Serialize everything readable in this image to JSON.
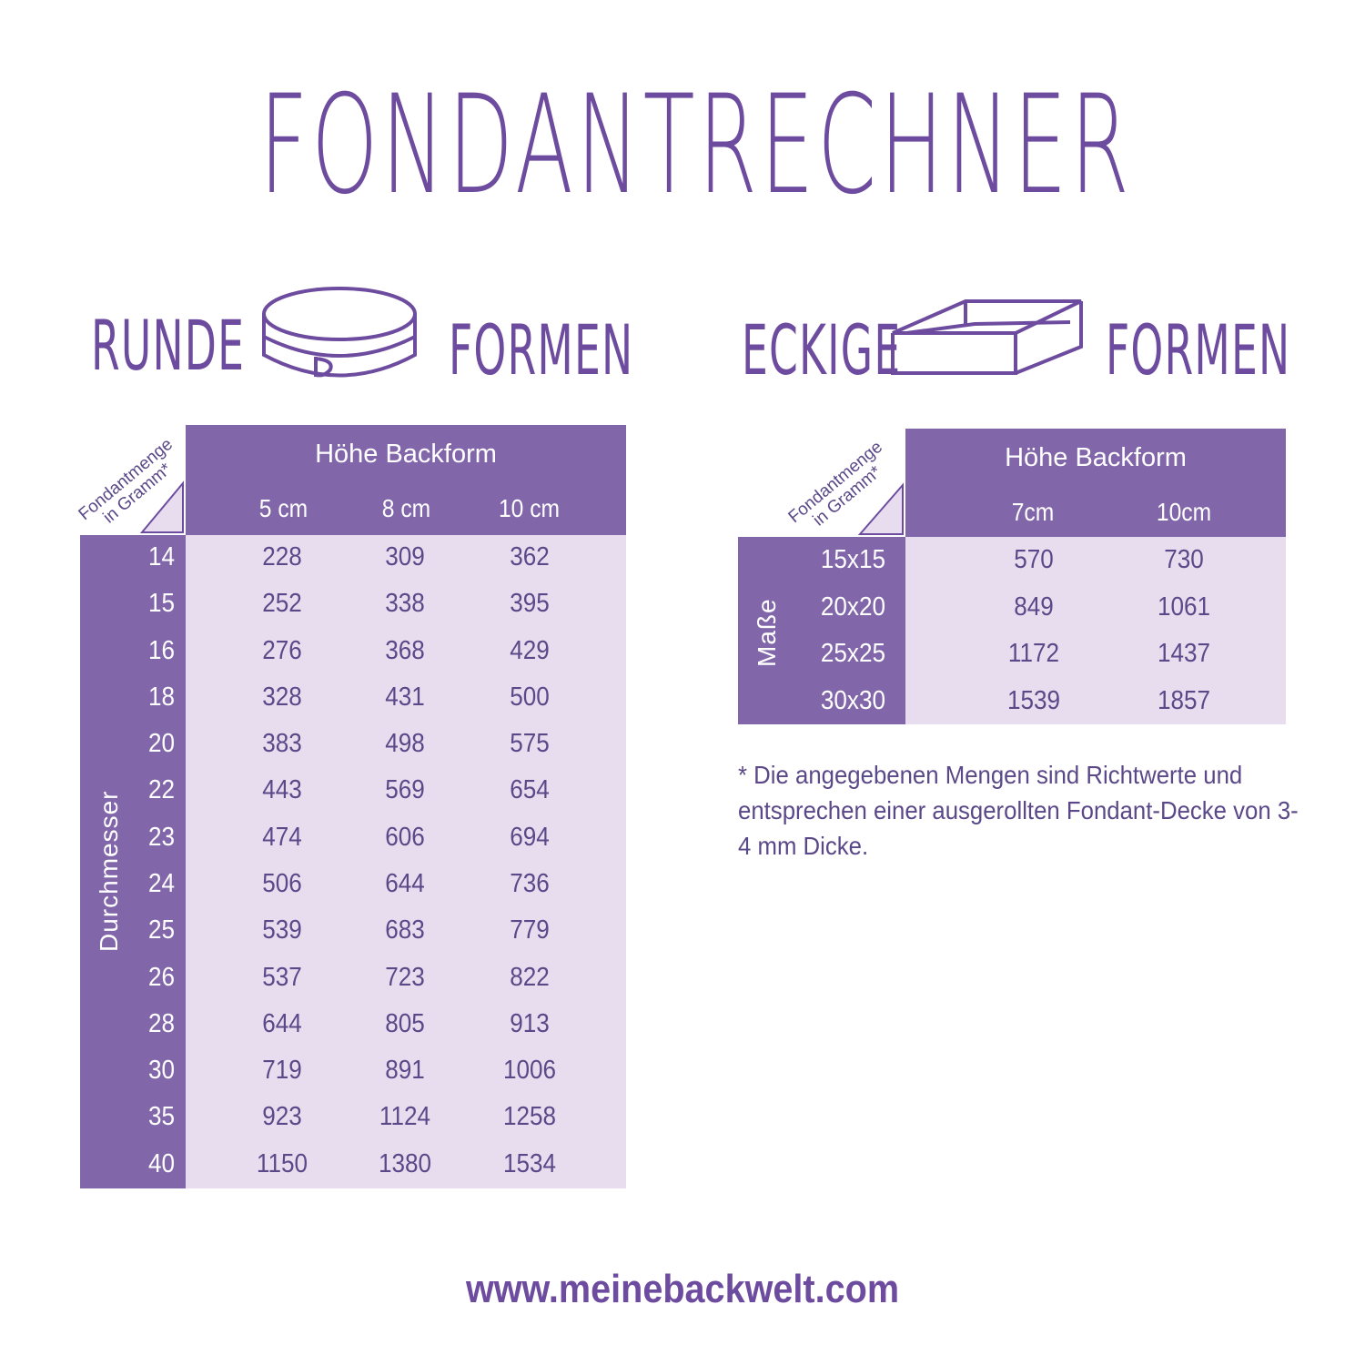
{
  "title": "FONDANTRECHNER",
  "round": {
    "heading_left": "RUNDE",
    "heading_right": "FORMEN",
    "icon": "round-cake-ring-icon",
    "corner_label_line1": "Fondantmenge",
    "corner_label_line2": "in Gramm*",
    "header_title": "Höhe Backform",
    "columns": [
      "5 cm",
      "8 cm",
      "10 cm"
    ],
    "row_axis_label": "Durchmesser",
    "rows": [
      {
        "label": "14",
        "values": [
          "228",
          "309",
          "362"
        ]
      },
      {
        "label": "15",
        "values": [
          "252",
          "338",
          "395"
        ]
      },
      {
        "label": "16",
        "values": [
          "276",
          "368",
          "429"
        ]
      },
      {
        "label": "18",
        "values": [
          "328",
          "431",
          "500"
        ]
      },
      {
        "label": "20",
        "values": [
          "383",
          "498",
          "575"
        ]
      },
      {
        "label": "22",
        "values": [
          "443",
          "569",
          "654"
        ]
      },
      {
        "label": "23",
        "values": [
          "474",
          "606",
          "694"
        ]
      },
      {
        "label": "24",
        "values": [
          "506",
          "644",
          "736"
        ]
      },
      {
        "label": "25",
        "values": [
          "539",
          "683",
          "779"
        ]
      },
      {
        "label": "26",
        "values": [
          "537",
          "723",
          "822"
        ]
      },
      {
        "label": "28",
        "values": [
          "644",
          "805",
          "913"
        ]
      },
      {
        "label": "30",
        "values": [
          "719",
          "891",
          "1006"
        ]
      },
      {
        "label": "35",
        "values": [
          "923",
          "1124",
          "1258"
        ]
      },
      {
        "label": "40",
        "values": [
          "1150",
          "1380",
          "1534"
        ]
      }
    ]
  },
  "square": {
    "heading_left": "ECKIGE",
    "heading_right": "FORMEN",
    "icon": "square-cake-box-icon",
    "corner_label_line1": "Fondantmenge",
    "corner_label_line2": "in Gramm*",
    "header_title": "Höhe Backform",
    "columns": [
      "7cm",
      "10cm"
    ],
    "row_axis_label": "Maße",
    "rows": [
      {
        "label": "15x15",
        "values": [
          "570",
          "730"
        ]
      },
      {
        "label": "20x20",
        "values": [
          "849",
          "1061"
        ]
      },
      {
        "label": "25x25",
        "values": [
          "1172",
          "1437"
        ]
      },
      {
        "label": "30x30",
        "values": [
          "1539",
          "1857"
        ]
      }
    ]
  },
  "footnote": "* Die angegebenen Mengen sind Richtwerte und entsprechen einer ausgerollten Fondant-Decke von 3-4 mm Dicke.",
  "website": "www.meinebackwelt.com",
  "colors": {
    "primary": "#8266aa",
    "light": "#e8ddef",
    "text": "#5b4888",
    "title": "#6d4c9f"
  }
}
